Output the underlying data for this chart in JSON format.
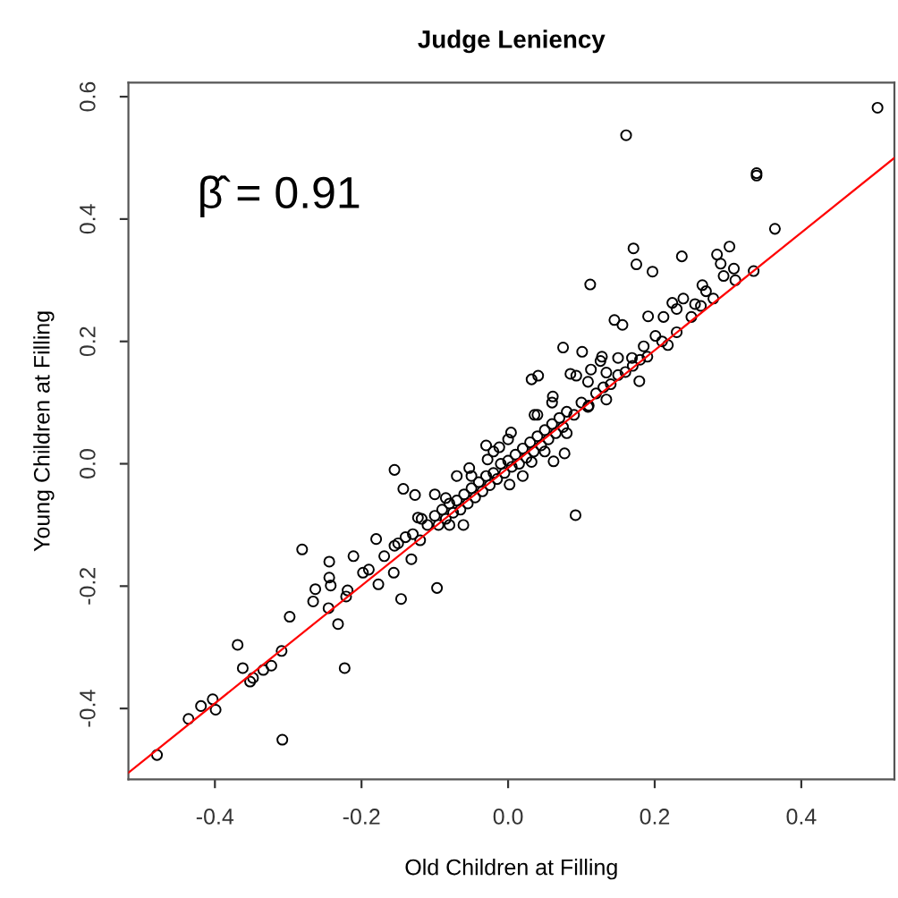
{
  "chart_data": {
    "type": "scatter",
    "title": "Judge Leniency",
    "xlabel": "Old Children at Filling",
    "ylabel": "Young Children at Filling",
    "annotations": [
      "β̂ = 0.91"
    ],
    "xlim": [
      -0.518,
      0.527
    ],
    "xticks": [
      {
        "value": -0.4,
        "label": "-0.4"
      },
      {
        "value": -0.2,
        "label": "-0.2"
      },
      {
        "value": 0,
        "label": "0.0"
      },
      {
        "value": 0.2,
        "label": "0.2"
      },
      {
        "value": 0.4,
        "label": "0.4"
      }
    ],
    "ylim": [
      -0.516,
      0.623
    ],
    "yticks": [
      {
        "value": -0.4,
        "label": "-0.4"
      },
      {
        "value": -0.2,
        "label": "-0.2"
      },
      {
        "value": 0,
        "label": "0.0"
      },
      {
        "value": 0.2,
        "label": "0.2"
      },
      {
        "value": 0.4,
        "label": "0.4"
      },
      {
        "value": 0.6,
        "label": "0.6"
      }
    ],
    "grid": false,
    "legend": false,
    "series": [
      {
        "color": "#000000",
        "marker": "circle",
        "x": [
          -0.155,
          -0.143,
          -0.127,
          -0.281,
          -0.123,
          -0.18,
          -0.211,
          -0.244,
          -0.244,
          -0.263,
          -0.266,
          -0.242,
          -0.219,
          -0.221,
          -0.245,
          -0.198,
          -0.19,
          -0.169,
          -0.156,
          -0.146,
          -0.177,
          -0.232,
          -0.298,
          -0.369,
          -0.362,
          -0.352,
          -0.348,
          -0.334,
          -0.323,
          -0.309,
          -0.223,
          -0.419,
          -0.403,
          -0.399,
          -0.436,
          -0.308,
          -0.479,
          0.112,
          0.145,
          0.075,
          0.101,
          0.032,
          0.041,
          0.085,
          0.126,
          0.15,
          0.134,
          0.109,
          0.061,
          0.036,
          0.004,
          -0.012,
          -0.028,
          -0.053,
          0.032,
          0.062,
          0.077,
          0.092,
          0.002,
          -0.061,
          -0.118,
          -0.085,
          -0.155,
          -0.132,
          -0.097,
          0.504,
          0.161,
          0.339,
          0.339,
          0.364,
          0.171,
          0.175,
          0.197,
          0.237,
          0.285,
          0.302,
          0.29,
          0.308,
          0.294,
          0.335,
          0.265,
          0.27,
          0.255,
          0.263,
          0.239,
          0.224,
          0.23,
          0.191,
          0.212,
          0.201,
          0.218,
          0.185,
          0.156,
          0.169,
          0.128,
          0.179,
          0.113,
          0.134,
          0.093,
          0.109,
          -0.11,
          -0.1,
          -0.095,
          -0.09,
          -0.085,
          -0.08,
          -0.075,
          -0.07,
          -0.065,
          -0.06,
          -0.055,
          -0.05,
          -0.045,
          -0.04,
          -0.035,
          -0.03,
          -0.025,
          -0.02,
          -0.015,
          -0.01,
          -0.005,
          0.0,
          0.005,
          0.01,
          0.015,
          0.02,
          0.025,
          0.03,
          0.035,
          0.04,
          0.045,
          0.05,
          0.055,
          0.06,
          0.065,
          0.07,
          0.075,
          0.08,
          0.09,
          0.1,
          0.11,
          0.12,
          -0.13,
          -0.14,
          -0.12,
          -0.15,
          -0.05,
          -0.02,
          0.02,
          0.05,
          0.08,
          -0.08,
          0.13,
          0.14,
          0.15,
          0.16,
          0.17,
          0.18,
          0.19,
          0.21,
          0.23,
          0.25,
          0.28,
          0.31,
          -0.03,
          0.0,
          -0.07,
          -0.1,
          0.06,
          0.04
        ],
        "values": [
          -0.01,
          -0.041,
          -0.051,
          -0.14,
          -0.088,
          -0.123,
          -0.151,
          -0.16,
          -0.186,
          -0.205,
          -0.225,
          -0.199,
          -0.207,
          -0.217,
          -0.236,
          -0.178,
          -0.173,
          -0.151,
          -0.178,
          -0.221,
          -0.197,
          -0.262,
          -0.25,
          -0.296,
          -0.334,
          -0.356,
          -0.35,
          -0.337,
          -0.33,
          -0.306,
          -0.334,
          -0.396,
          -0.385,
          -0.402,
          -0.417,
          -0.451,
          -0.476,
          0.293,
          0.235,
          0.19,
          0.183,
          0.138,
          0.144,
          0.147,
          0.168,
          0.173,
          0.105,
          0.093,
          0.11,
          0.08,
          0.051,
          0.027,
          0.007,
          -0.007,
          0.003,
          0.004,
          0.017,
          -0.084,
          -0.034,
          -0.1,
          -0.09,
          -0.056,
          -0.134,
          -0.156,
          -0.203,
          0.582,
          0.537,
          0.475,
          0.471,
          0.384,
          0.352,
          0.326,
          0.314,
          0.339,
          0.342,
          0.355,
          0.327,
          0.319,
          0.307,
          0.315,
          0.292,
          0.282,
          0.261,
          0.258,
          0.27,
          0.263,
          0.253,
          0.241,
          0.24,
          0.209,
          0.194,
          0.192,
          0.227,
          0.173,
          0.175,
          0.135,
          0.154,
          0.149,
          0.144,
          0.134,
          -0.1,
          -0.085,
          -0.1,
          -0.075,
          -0.09,
          -0.065,
          -0.08,
          -0.06,
          -0.075,
          -0.05,
          -0.065,
          -0.04,
          -0.055,
          -0.03,
          -0.045,
          -0.02,
          -0.035,
          -0.015,
          -0.025,
          0.0,
          -0.015,
          0.005,
          -0.005,
          0.015,
          0.0,
          0.025,
          0.01,
          0.035,
          0.02,
          0.045,
          0.03,
          0.055,
          0.04,
          0.065,
          0.05,
          0.075,
          0.06,
          0.085,
          0.08,
          0.1,
          0.095,
          0.115,
          -0.115,
          -0.12,
          -0.125,
          -0.13,
          -0.02,
          0.02,
          -0.02,
          0.02,
          0.05,
          -0.1,
          0.125,
          0.13,
          0.145,
          0.15,
          0.16,
          0.17,
          0.175,
          0.2,
          0.215,
          0.24,
          0.27,
          0.3,
          0.03,
          0.04,
          -0.02,
          -0.05,
          0.1,
          0.08
        ]
      },
      {
        "type": "line",
        "color": "#ff0000",
        "x": [
          -0.518,
          0.527
        ],
        "values": [
          -0.505,
          0.5
        ]
      }
    ]
  }
}
